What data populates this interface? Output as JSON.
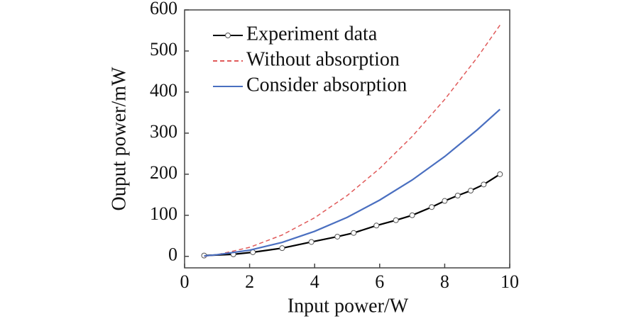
{
  "chart_data": {
    "type": "line",
    "x_label": "Input power/W",
    "y_label": "Ouput power/mW",
    "xlim": [
      0,
      10
    ],
    "ylim": [
      -28,
      600
    ],
    "xticks": [
      0,
      2,
      4,
      6,
      8,
      10
    ],
    "yticks": [
      0,
      100,
      200,
      300,
      400,
      500,
      600
    ],
    "legend": "upper left",
    "series": [
      {
        "name": "Experiment data",
        "color": "#000000",
        "style": "solid",
        "markers": true,
        "x": [
          0.6,
          1.5,
          2.1,
          3.0,
          3.9,
          4.7,
          5.2,
          5.9,
          6.5,
          7.0,
          7.6,
          8.0,
          8.4,
          8.8,
          9.2,
          9.7
        ],
        "values": [
          2,
          5,
          10,
          20,
          35,
          48,
          57,
          75,
          88,
          100,
          120,
          135,
          148,
          160,
          175,
          200
        ]
      },
      {
        "name": "Without absorption",
        "color": "#e05a5a",
        "style": "dashed",
        "markers": false,
        "x": [
          0.6,
          1,
          2,
          3,
          4,
          5,
          6,
          7,
          8,
          9,
          9.7
        ],
        "values": [
          0,
          4,
          22,
          52,
          94,
          148,
          214,
          292,
          382,
          484,
          563
        ]
      },
      {
        "name": "Consider absorption",
        "color": "#4a6fc0",
        "style": "solid",
        "markers": false,
        "x": [
          0.6,
          1,
          2,
          3,
          4,
          5,
          6,
          7,
          8,
          9,
          9.7
        ],
        "values": [
          1,
          4,
          15,
          34,
          61,
          95,
          137,
          186,
          243,
          308,
          358
        ]
      }
    ]
  }
}
